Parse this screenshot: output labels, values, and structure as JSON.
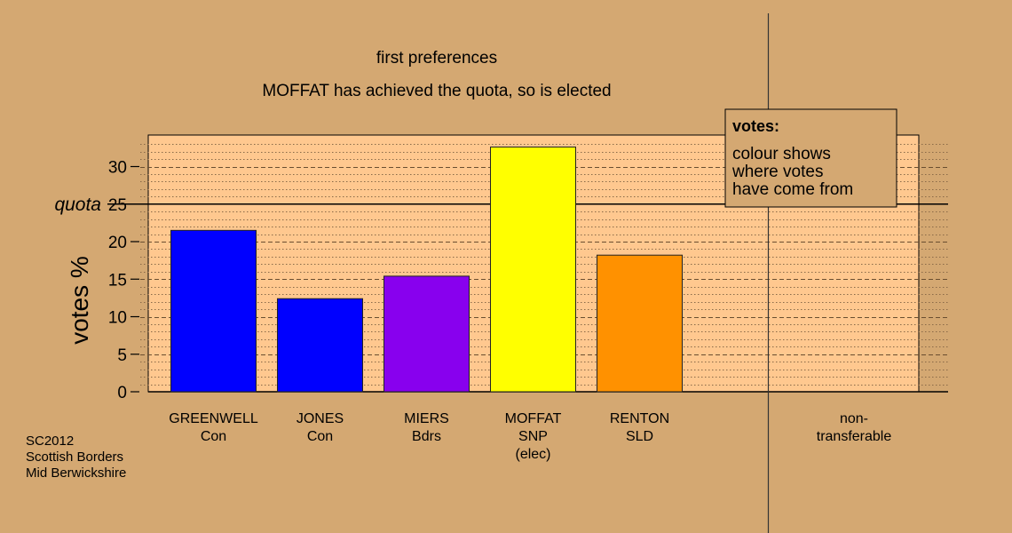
{
  "source_lines": [
    "SC2012",
    "Scottish Borders",
    "Mid Berwickshire"
  ],
  "legend": {
    "title": "votes:",
    "lines": [
      "colour shows",
      "where votes",
      "have come from"
    ]
  },
  "chart_data": {
    "type": "bar",
    "title": "first preferences",
    "subtitle": "MOFFAT has achieved the quota, so is elected",
    "xlabel": "",
    "ylabel": "votes %",
    "ylim": [
      0,
      34
    ],
    "yticks": [
      0,
      5,
      10,
      15,
      20,
      25,
      30
    ],
    "grid": true,
    "quota": {
      "label": "quota",
      "value": 25
    },
    "categories": [
      {
        "lines": [
          "GREENWELL",
          "Con"
        ],
        "value": 21.5,
        "color": "#0000ff"
      },
      {
        "lines": [
          "JONES",
          "Con"
        ],
        "value": 12.4,
        "color": "#0000ff"
      },
      {
        "lines": [
          "MIERS",
          "Bdrs"
        ],
        "value": 15.4,
        "color": "#8800ee"
      },
      {
        "lines": [
          "MOFFAT",
          "SNP",
          "(elec)"
        ],
        "value": 32.6,
        "color": "#ffff00"
      },
      {
        "lines": [
          "RENTON",
          "SLD"
        ],
        "value": 18.2,
        "color": "#ff9100"
      }
    ],
    "non_transferable": {
      "lines": [
        "non-",
        "transferable"
      ],
      "value": 0
    }
  }
}
